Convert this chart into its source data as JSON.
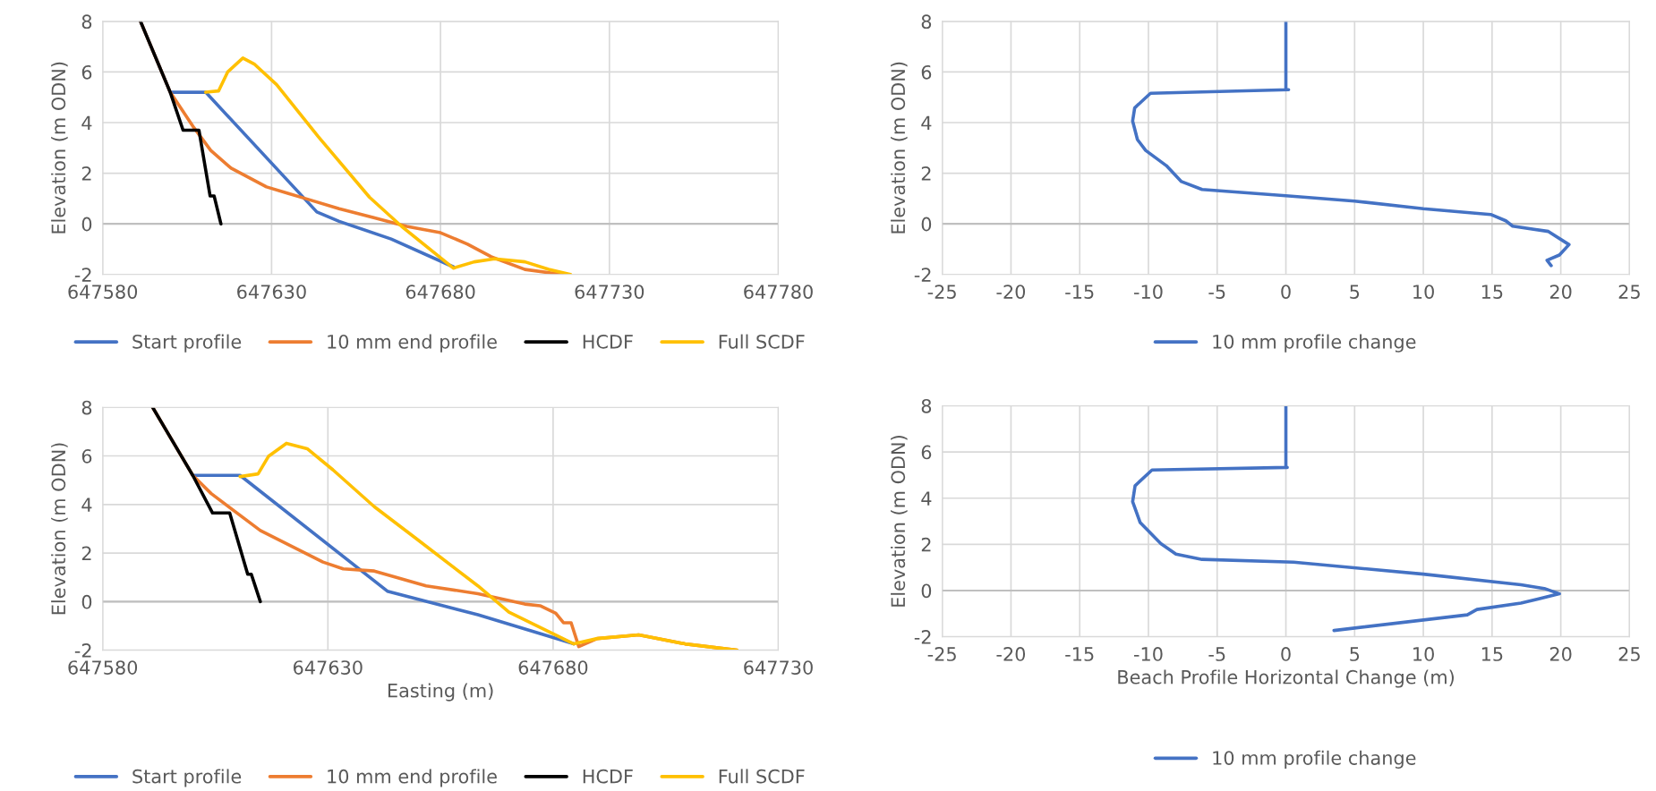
{
  "chart_data": [
    {
      "type": "line",
      "ylabel": "Elevation (m ODN)",
      "xlim": [
        647580,
        647780
      ],
      "xticks": [
        647580,
        647630,
        647680,
        647730,
        647780
      ],
      "ylim": [
        -2,
        8
      ],
      "yticks": [
        -2,
        0,
        2,
        4,
        6,
        8
      ],
      "grid": true,
      "legend": "bottom",
      "series": [
        {
          "name": "Start profile",
          "color": "#4472c4",
          "x": [
            647591.2,
            647600,
            647610.5,
            647643.4,
            647650,
            647665.4,
            647683.8
          ],
          "values": [
            8,
            5.2,
            5.2,
            0.47,
            0.1,
            -0.6,
            -1.7
          ]
        },
        {
          "name": "10 mm end profile",
          "color": "#ed7d31",
          "x": [
            647591.2,
            647600,
            647603,
            647607,
            647612,
            647618,
            647628.5,
            647635,
            647640,
            647650,
            647660,
            647670,
            647680,
            647688,
            647695,
            647705,
            647716
          ],
          "values": [
            8,
            5.2,
            4.6,
            3.8,
            2.9,
            2.2,
            1.46,
            1.2,
            1.0,
            0.6,
            0.25,
            -0.1,
            -0.35,
            -0.8,
            -1.3,
            -1.8,
            -2
          ]
        },
        {
          "name": "HCDF",
          "color": "#000000",
          "x": [
            647591.2,
            647600,
            647603.8,
            647608.5,
            647611.8,
            647613,
            647615
          ],
          "values": [
            8,
            5.2,
            3.7,
            3.7,
            1.1,
            1.1,
            0
          ]
        },
        {
          "name": "Full SCDF",
          "color": "#ffc000",
          "x": [
            647610.5,
            647614.3,
            647617,
            647621.5,
            647625,
            647631.5,
            647643.8,
            647659,
            647668.5,
            647683.8,
            647690,
            647696,
            647705,
            647712,
            647718.5
          ],
          "values": [
            5.2,
            5.25,
            6.0,
            6.55,
            6.3,
            5.5,
            3.45,
            1.05,
            -0.1,
            -1.75,
            -1.5,
            -1.38,
            -1.5,
            -1.8,
            -2
          ]
        }
      ]
    },
    {
      "type": "line",
      "ylabel": "Elevation (m ODN)",
      "xlim": [
        -25,
        25
      ],
      "xticks": [
        -25,
        -20,
        -15,
        -10,
        -5,
        0,
        5,
        10,
        15,
        20,
        25
      ],
      "ylim": [
        -2,
        8
      ],
      "yticks": [
        -2,
        0,
        2,
        4,
        6,
        8
      ],
      "grid": true,
      "legend": "bottom",
      "series": [
        {
          "name": "10 mm profile change",
          "color": "#4472c4",
          "x": [
            0,
            0,
            0.2,
            -9.85,
            -11,
            -11.15,
            -10.8,
            -10.2,
            -8.7,
            -7.6,
            -6.1,
            0,
            5.0,
            10,
            14.9,
            16,
            16.5,
            19.1,
            20.6,
            19.9,
            19,
            19.3
          ],
          "values": [
            8,
            5.3,
            5.3,
            5.16,
            4.58,
            4.06,
            3.33,
            2.9,
            2.3,
            1.67,
            1.36,
            1.11,
            0.9,
            0.6,
            0.37,
            0.12,
            -0.09,
            -0.3,
            -0.82,
            -1.23,
            -1.44,
            -1.65
          ]
        }
      ]
    },
    {
      "type": "line",
      "xlabel": "Easting (m)",
      "ylabel": "Elevation (m ODN)",
      "xlim": [
        647580,
        647730
      ],
      "xticks": [
        647580,
        647630,
        647680,
        647730
      ],
      "ylim": [
        -2,
        8
      ],
      "yticks": [
        -2,
        0,
        2,
        4,
        6,
        8
      ],
      "grid": true,
      "legend": "bottom",
      "series": [
        {
          "name": "Start profile",
          "color": "#4472c4",
          "x": [
            647600,
            647610.5,
            647643.2,
            647663.3,
            647684.6
          ],
          "values": [
            5.2,
            5.2,
            0.43,
            -0.54,
            -1.74
          ]
        },
        {
          "name": "10 mm end profile",
          "color": "#ed7d31",
          "x": [
            647591.1,
            647600,
            647604.1,
            647615,
            647628.9,
            647633.4,
            647640.3,
            647651.8,
            647663.3,
            647673.7,
            647677.1,
            647680.6,
            647682.3,
            647684,
            647685.7,
            647689.8,
            647699,
            647709.3,
            647720.8
          ],
          "values": [
            8,
            5.2,
            4.45,
            2.93,
            1.63,
            1.35,
            1.26,
            0.65,
            0.33,
            -0.1,
            -0.17,
            -0.48,
            -0.87,
            -0.87,
            -1.85,
            -1.52,
            -1.37,
            -1.74,
            -2
          ]
        },
        {
          "name": "HCDF",
          "color": "#000000",
          "x": [
            647591.1,
            647600,
            647604.4,
            647608.2,
            647612.2,
            647613,
            647615
          ],
          "values": [
            8,
            5.2,
            3.65,
            3.65,
            1.13,
            1.13,
            0
          ]
        },
        {
          "name": "Full SCDF",
          "color": "#ffc000",
          "x": [
            647610.5,
            647614.5,
            647616.8,
            647620.8,
            647625.4,
            647631.1,
            647640.3,
            647649.5,
            647663.3,
            647670.2,
            647684.6,
            647689.8,
            647699,
            647709.3,
            647720.8
          ],
          "values": [
            5.15,
            5.26,
            5.98,
            6.52,
            6.3,
            5.43,
            3.91,
            2.61,
            0.65,
            -0.43,
            -1.74,
            -1.52,
            -1.37,
            -1.74,
            -2
          ]
        }
      ]
    },
    {
      "type": "line",
      "xlabel": "Beach Profile Horizontal Change (m)",
      "ylabel": "Elevation (m ODN)",
      "xlim": [
        -25,
        25
      ],
      "xticks": [
        -25,
        -20,
        -15,
        -10,
        -5,
        0,
        5,
        10,
        15,
        20,
        25
      ],
      "ylim": [
        -2,
        8
      ],
      "yticks": [
        -2,
        0,
        2,
        4,
        6,
        8
      ],
      "grid": true,
      "legend": "bottom",
      "series": [
        {
          "name": "10 mm profile change",
          "color": "#4472c4",
          "x": [
            0,
            0,
            0.1,
            -9.74,
            -10.97,
            -11.15,
            -10.6,
            -9.1,
            -8.0,
            -6.1,
            0.56,
            10,
            17.1,
            18.8,
            19.9,
            18.4,
            17.1,
            13.9,
            13.2,
            3.5
          ],
          "values": [
            8,
            5.33,
            5.33,
            5.22,
            4.54,
            3.85,
            2.94,
            2.03,
            1.58,
            1.35,
            1.23,
            0.71,
            0.25,
            0.09,
            -0.14,
            -0.36,
            -0.54,
            -0.82,
            -1.05,
            -1.73
          ]
        }
      ]
    }
  ]
}
